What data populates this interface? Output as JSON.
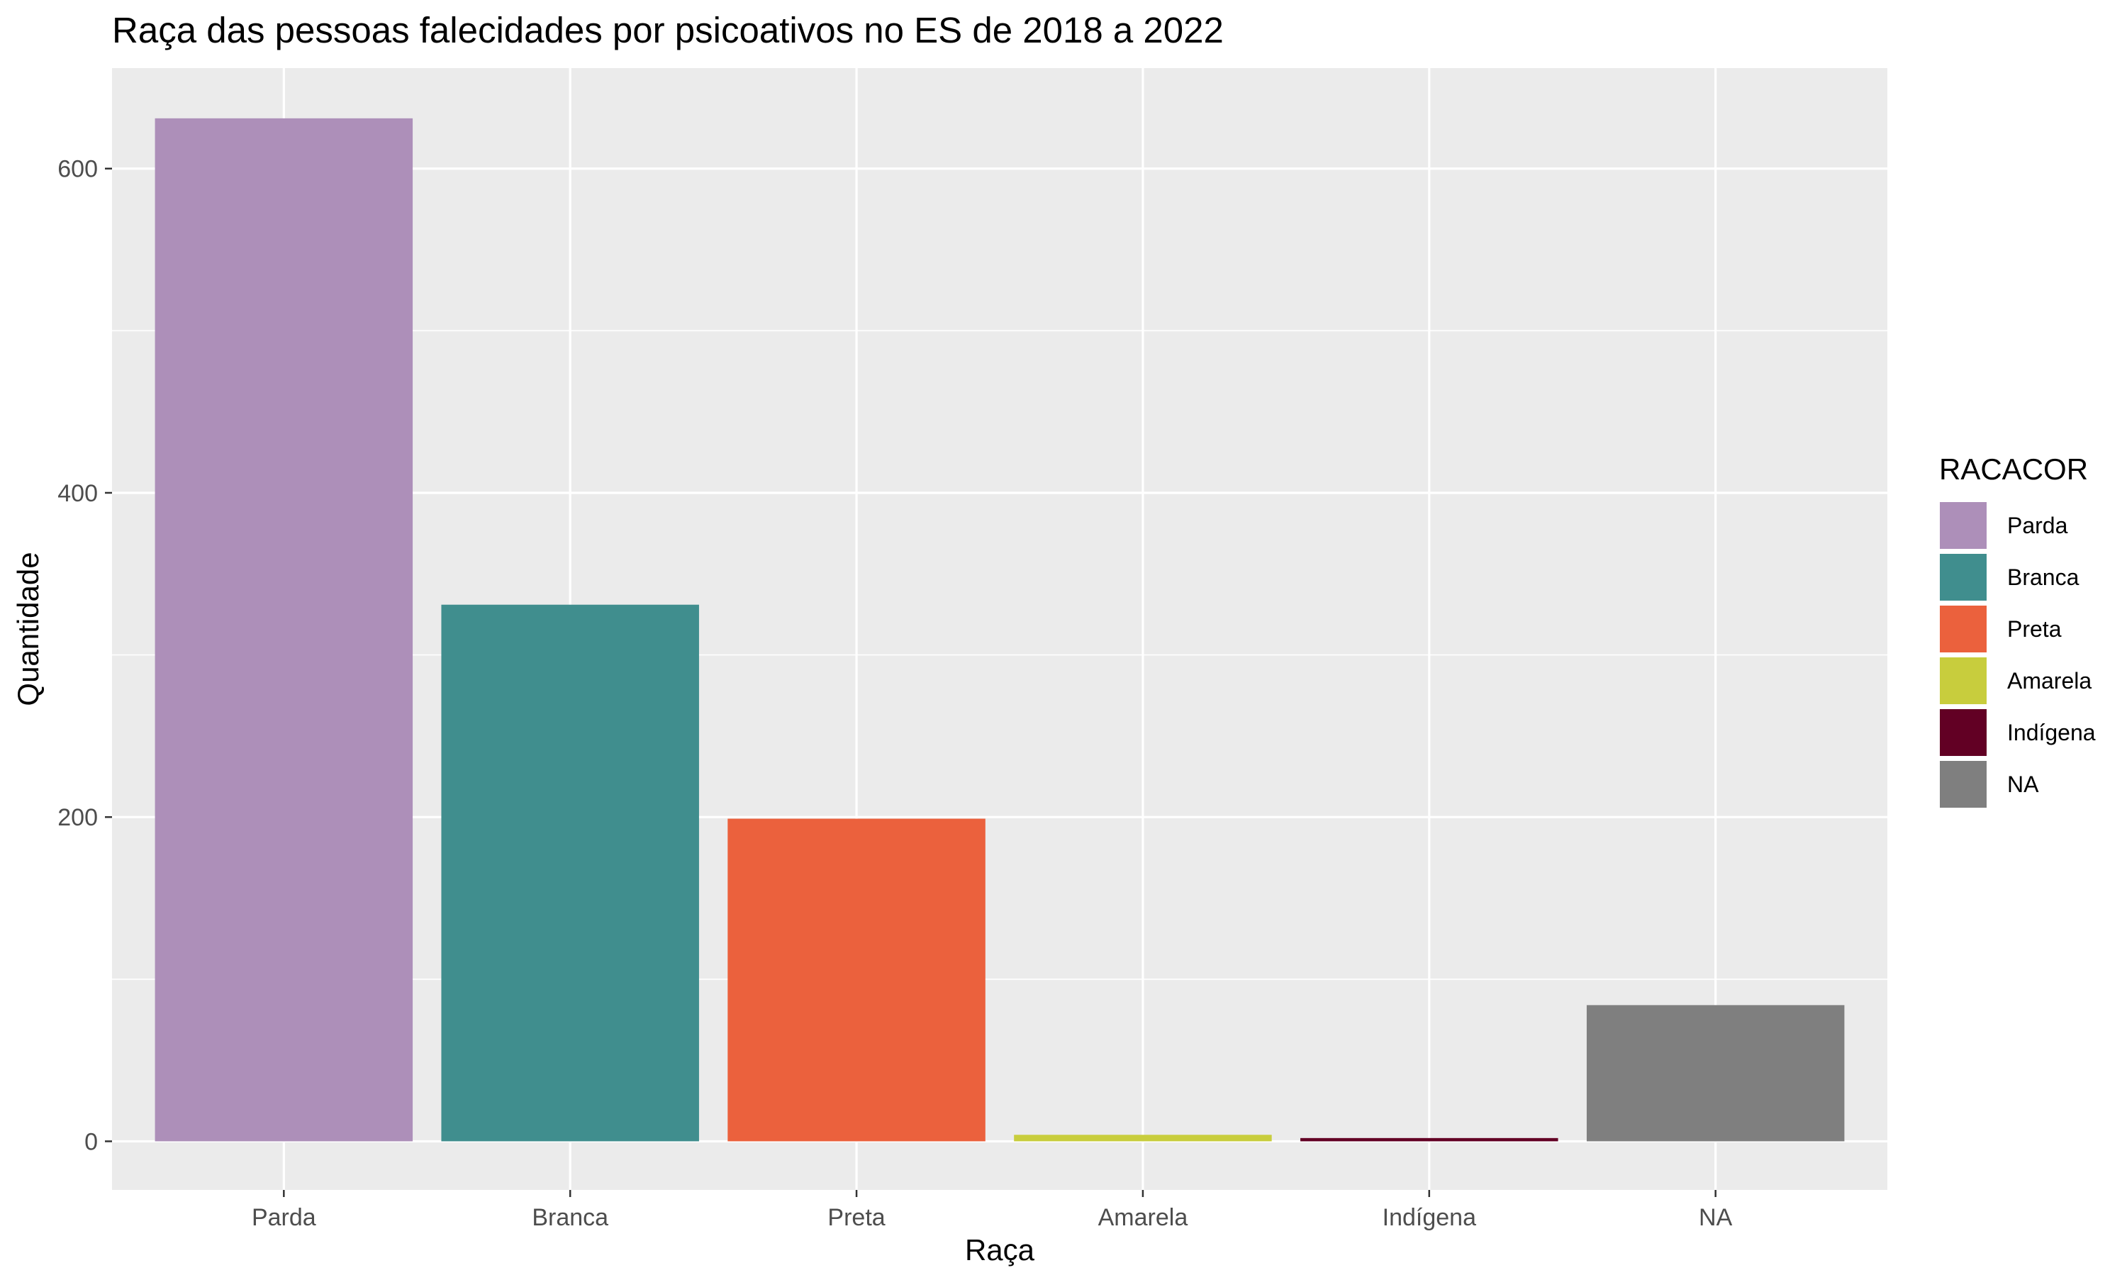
{
  "chart_data": {
    "type": "bar",
    "title": "Raça das pessoas falecidades por psicoativos no ES de 2018 a 2022",
    "xlabel": "Raça",
    "ylabel": "Quantidade",
    "categories": [
      "Parda",
      "Branca",
      "Preta",
      "Amarela",
      "Indígena",
      "NA"
    ],
    "values": [
      631,
      331,
      199,
      4,
      2,
      84
    ],
    "colors": [
      "#AD8FB9",
      "#408E8E",
      "#EB613D",
      "#C8CD3D",
      "#620024",
      "#7F7F7F"
    ],
    "ylim": [
      -30,
      662
    ],
    "yticks": [
      0,
      200,
      400,
      600
    ],
    "yticks_minor": [
      100,
      300,
      500
    ],
    "grid": true,
    "background": "#EBEBEB",
    "legend": {
      "title": "RACACOR",
      "placement": "right",
      "entries": [
        "Parda",
        "Branca",
        "Preta",
        "Amarela",
        "Indígena",
        "NA"
      ]
    }
  }
}
